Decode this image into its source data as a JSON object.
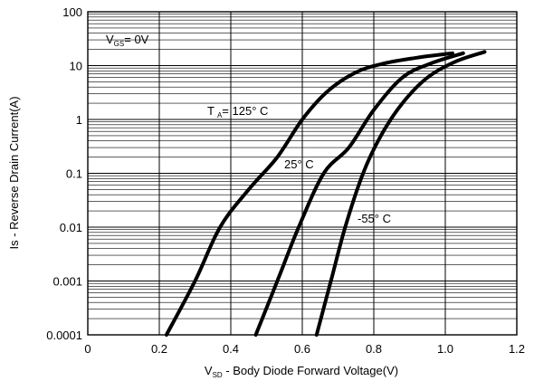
{
  "chart_data": {
    "type": "line",
    "title": "",
    "xlabel": {
      "main": "V",
      "sub": "SD",
      "rest": " - Body Diode Forward Voltage(V)"
    },
    "ylabel": "Is - Reverse Drain Current(A)",
    "x_scale": "linear",
    "y_scale": "log",
    "xlim": [
      0,
      1.2
    ],
    "ylim": [
      0.0001,
      100
    ],
    "x_ticks": [
      "0",
      "0.2",
      "0.4",
      "0.6",
      "0.8",
      "1.0",
      "1.2"
    ],
    "y_ticks": [
      "0.0001",
      "0.001",
      "0.01",
      "0.1",
      "1",
      "10",
      "100"
    ],
    "grid": true,
    "annotations": {
      "vgs": {
        "main": "V",
        "sub": "GS",
        "rest": "= 0V"
      },
      "ta": {
        "main": "T",
        "sub": "A",
        "rest": "= 125° C"
      },
      "t25": "25° C",
      "tm55": "-55° C"
    },
    "series": [
      {
        "name": "T A = 125° C",
        "x": [
          0.22,
          0.3,
          0.37,
          0.45,
          0.53,
          0.6,
          0.67,
          0.75,
          0.83,
          0.92,
          1.02
        ],
        "y": [
          0.0001,
          0.001,
          0.01,
          0.05,
          0.2,
          1.0,
          3.3,
          7.5,
          11,
          14,
          17
        ]
      },
      {
        "name": "25° C",
        "x": [
          0.47,
          0.53,
          0.59,
          0.66,
          0.73,
          0.8,
          0.88,
          0.96,
          1.05
        ],
        "y": [
          0.0001,
          0.001,
          0.01,
          0.1,
          0.3,
          1.5,
          6,
          11,
          17
        ]
      },
      {
        "name": "-55° C",
        "x": [
          0.64,
          0.68,
          0.72,
          0.77,
          0.82,
          0.88,
          0.95,
          1.03,
          1.11
        ],
        "y": [
          0.0001,
          0.001,
          0.01,
          0.1,
          0.5,
          2,
          6,
          12,
          18
        ]
      }
    ]
  }
}
